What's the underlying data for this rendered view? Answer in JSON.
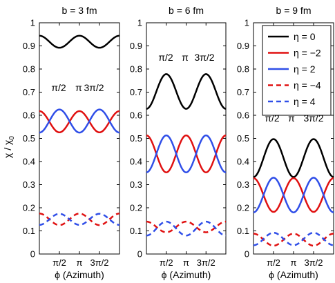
{
  "chart_data": {
    "type": "line",
    "ylabel": "χ / χ",
    "ylabel_sub": "0",
    "xlabel": "ϕ (Azimuth)",
    "ylim": [
      0,
      1
    ],
    "xlim": [
      0,
      3.14159
    ],
    "yticks": [
      "0",
      "0.1",
      "0.2",
      "0.3",
      "0.4",
      "0.5",
      "0.6",
      "0.7",
      "0.8",
      "0.9",
      "1"
    ],
    "xtick_labels": [
      "π/2",
      "π",
      "3π/2"
    ],
    "legend": {
      "placement": "top-right of third panel",
      "entries": [
        {
          "label": "η = 0",
          "color": "#000000",
          "dash": "solid"
        },
        {
          "label": "η = −2",
          "color": "#e01010",
          "dash": "solid"
        },
        {
          "label": "η = 2",
          "color": "#2f4ee8",
          "dash": "solid"
        },
        {
          "label": "η = −4",
          "color": "#e01010",
          "dash": "dashed"
        },
        {
          "label": "η = 4",
          "color": "#2f4ee8",
          "dash": "dashed"
        }
      ]
    },
    "panels": [
      {
        "title": "b = 3 fm",
        "inner_labels": [
          "π/2",
          "π",
          "3π/2"
        ],
        "series": [
          {
            "key": "eta0",
            "mean": 0.918,
            "amp": 0.026,
            "phase": 0
          },
          {
            "key": "etam2",
            "mean": 0.572,
            "amp": 0.046,
            "phase": 0
          },
          {
            "key": "eta2",
            "mean": 0.575,
            "amp": 0.05,
            "phase": 1
          },
          {
            "key": "etam4",
            "mean": 0.15,
            "amp": 0.025,
            "phase": 0
          },
          {
            "key": "eta4",
            "mean": 0.15,
            "amp": 0.024,
            "phase": 1
          }
        ]
      },
      {
        "title": "b = 6 fm",
        "inner_labels": [
          "π/2",
          "π",
          "3π/2"
        ],
        "series": [
          {
            "key": "eta0",
            "mean": 0.703,
            "amp": 0.075,
            "phase": 1
          },
          {
            "key": "etam2",
            "mean": 0.433,
            "amp": 0.08,
            "phase": 0
          },
          {
            "key": "eta2",
            "mean": 0.433,
            "amp": 0.08,
            "phase": 1
          },
          {
            "key": "etam4",
            "mean": 0.117,
            "amp": 0.023,
            "phase": 0
          },
          {
            "key": "eta4",
            "mean": 0.11,
            "amp": 0.03,
            "phase": 1
          }
        ]
      },
      {
        "title": "b = 9 fm",
        "inner_labels": [
          "π/2",
          "π",
          "3π/2"
        ],
        "series": [
          {
            "key": "eta0",
            "mean": 0.415,
            "amp": 0.082,
            "phase": 1
          },
          {
            "key": "etam2",
            "mean": 0.255,
            "amp": 0.073,
            "phase": 0
          },
          {
            "key": "eta2",
            "mean": 0.255,
            "amp": 0.075,
            "phase": 1
          },
          {
            "key": "etam4",
            "mean": 0.062,
            "amp": 0.026,
            "phase": 0
          },
          {
            "key": "eta4",
            "mean": 0.065,
            "amp": 0.027,
            "phase": 1
          }
        ]
      }
    ]
  }
}
